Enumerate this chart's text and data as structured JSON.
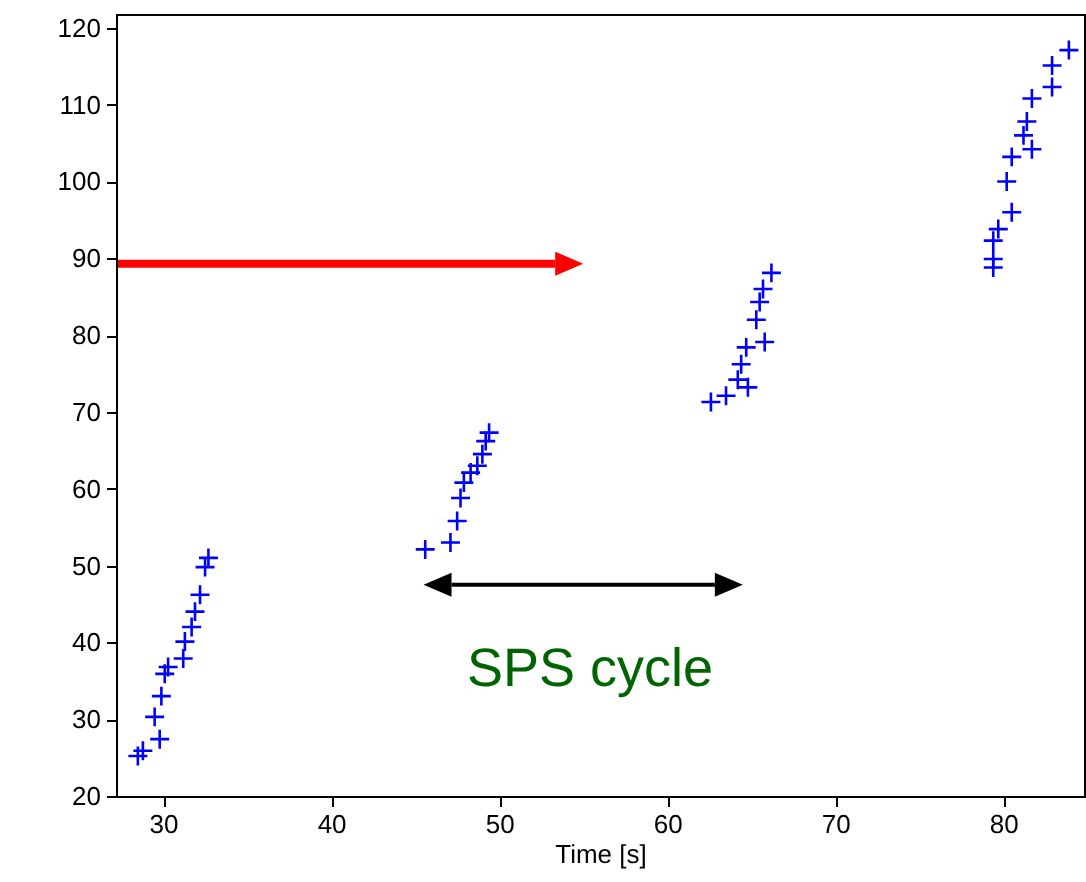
{
  "chart_data": {
    "type": "scatter",
    "xlabel": "Time [s]",
    "marker": "cross",
    "grid": false,
    "xlim": [
      27.2,
      84.8
    ],
    "ylim": [
      20,
      121.8
    ],
    "xticks": [
      30,
      40,
      50,
      60,
      70,
      80
    ],
    "yticks": [
      20,
      30,
      40,
      50,
      60,
      70,
      80,
      90,
      100,
      110,
      120
    ],
    "annotations": [
      "SPS cycle"
    ],
    "series": [
      {
        "color": "#0000ff",
        "x": [
          28.5,
          28.8,
          29.5,
          29.8,
          29.9,
          30.1,
          30.3,
          31.2,
          31.3,
          31.7,
          31.9,
          32.2,
          32.5,
          32.7,
          45.6,
          47.1,
          47.5,
          47.7,
          47.9,
          48.3,
          48.7,
          49,
          49.2,
          49.4,
          62.6,
          63.5,
          64.8,
          64.2,
          64.4,
          64.7,
          65.8,
          65.3,
          65.5,
          65.7,
          66.2,
          79.4,
          79.4,
          79.4,
          79.7,
          80.5,
          80.2,
          80.5,
          81.7,
          81.2,
          81.4,
          81.7,
          82.9,
          82.9,
          83.9
        ],
        "values": [
          25.2,
          25.9,
          30.3,
          27.4,
          33,
          35.9,
          36.8,
          37.9,
          40.1,
          42,
          44,
          46.2,
          49.8,
          51,
          52.1,
          53,
          55.8,
          58.8,
          60.8,
          62.1,
          63,
          64.5,
          66.2,
          67.3,
          71.3,
          72.1,
          73.2,
          74.2,
          76.2,
          78.4,
          79.1,
          82,
          84.3,
          86,
          88.1,
          88.8,
          89.9,
          92.3,
          93.8,
          96,
          100,
          103.2,
          104.2,
          106,
          107.8,
          110.8,
          112.3,
          115.1,
          117.1
        ]
      }
    ]
  }
}
